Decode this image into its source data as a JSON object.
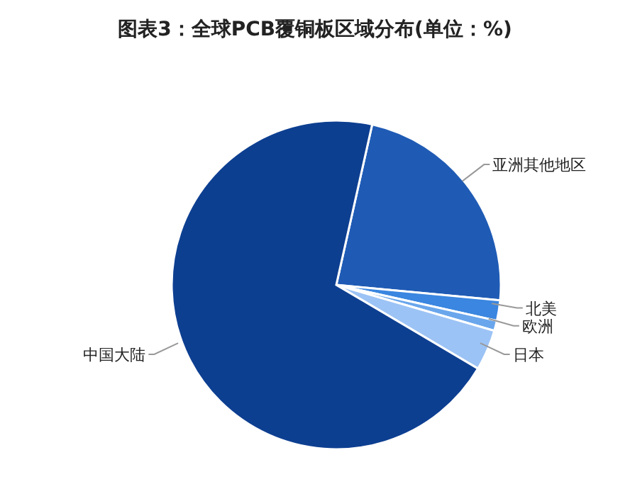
{
  "chart_data": {
    "type": "pie",
    "title": "图表3：全球PCB覆铜板区域分布(单位：%)",
    "categories": [
      "亚洲其他地区",
      "北美",
      "欧洲",
      "日本",
      "中国大陆"
    ],
    "values": [
      23,
      2,
      1,
      4,
      70
    ],
    "colors": [
      "#1f5bb5",
      "#3a86e0",
      "#6aa6ec",
      "#9cc3f5",
      "#0d3f91"
    ]
  }
}
